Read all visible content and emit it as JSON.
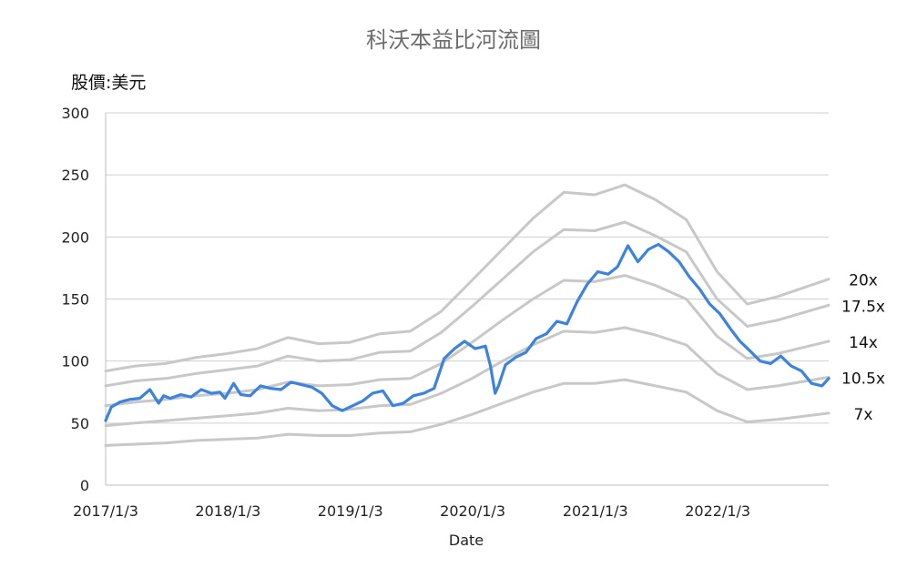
{
  "chart_data": {
    "type": "line",
    "title": "科沃本益比河流圖",
    "unit_label": "股價:美元",
    "xlabel": "Date",
    "ylabel": "",
    "ylim": [
      0,
      300
    ],
    "yticks": [
      0,
      50,
      100,
      150,
      200,
      250,
      300
    ],
    "xlim": [
      "2017-01-03",
      "2022-11-30"
    ],
    "xticks": [
      "2017-01-03",
      "2018-01-03",
      "2019-01-03",
      "2020-01-03",
      "2021-01-03",
      "2022-01-03"
    ],
    "xtick_labels": [
      "2017/1/3",
      "2018/1/3",
      "2019/1/3",
      "2020/1/3",
      "2021/1/3",
      "2022/1/3"
    ],
    "grid": true,
    "band_series": [
      {
        "name": "20x",
        "color": "#c8c8c8",
        "x": [
          "2017-01-03",
          "2017-04-01",
          "2017-07-01",
          "2017-10-01",
          "2018-01-01",
          "2018-04-01",
          "2018-07-01",
          "2018-10-01",
          "2019-01-01",
          "2019-04-01",
          "2019-07-01",
          "2019-10-01",
          "2020-01-01",
          "2020-04-01",
          "2020-07-01",
          "2020-10-01",
          "2021-01-01",
          "2021-04-01",
          "2021-07-01",
          "2021-10-01",
          "2022-01-01",
          "2022-04-01",
          "2022-07-01",
          "2022-11-30"
        ],
        "values": [
          92,
          96,
          98,
          103,
          106,
          110,
          119,
          114,
          115,
          122,
          124,
          140,
          165,
          190,
          215,
          236,
          234,
          242,
          230,
          214,
          172,
          146,
          152,
          166
        ]
      },
      {
        "name": "17.5x",
        "color": "#c8c8c8",
        "x": [
          "2017-01-03",
          "2017-04-01",
          "2017-07-01",
          "2017-10-01",
          "2018-01-01",
          "2018-04-01",
          "2018-07-01",
          "2018-10-01",
          "2019-01-01",
          "2019-04-01",
          "2019-07-01",
          "2019-10-01",
          "2020-01-01",
          "2020-04-01",
          "2020-07-01",
          "2020-10-01",
          "2021-01-01",
          "2021-04-01",
          "2021-07-01",
          "2021-10-01",
          "2022-01-01",
          "2022-04-01",
          "2022-07-01",
          "2022-11-30"
        ],
        "values": [
          80,
          84,
          86,
          90,
          93,
          96,
          104,
          100,
          101,
          107,
          108,
          123,
          144,
          166,
          188,
          206,
          205,
          212,
          201,
          188,
          150,
          128,
          133,
          145
        ]
      },
      {
        "name": "14x",
        "color": "#c8c8c8",
        "x": [
          "2017-01-03",
          "2017-04-01",
          "2017-07-01",
          "2017-10-01",
          "2018-01-01",
          "2018-04-01",
          "2018-07-01",
          "2018-10-01",
          "2019-01-01",
          "2019-04-01",
          "2019-07-01",
          "2019-10-01",
          "2020-01-01",
          "2020-04-01",
          "2020-07-01",
          "2020-10-01",
          "2021-01-01",
          "2021-04-01",
          "2021-07-01",
          "2021-10-01",
          "2022-01-01",
          "2022-04-01",
          "2022-07-01",
          "2022-11-30"
        ],
        "values": [
          64,
          67,
          69,
          72,
          74,
          77,
          83,
          80,
          81,
          85,
          86,
          98,
          115,
          133,
          150,
          165,
          164,
          169,
          161,
          150,
          120,
          102,
          106,
          116
        ]
      },
      {
        "name": "10.5x",
        "color": "#c8c8c8",
        "x": [
          "2017-01-03",
          "2017-04-01",
          "2017-07-01",
          "2017-10-01",
          "2018-01-01",
          "2018-04-01",
          "2018-07-01",
          "2018-10-01",
          "2019-01-01",
          "2019-04-01",
          "2019-07-01",
          "2019-10-01",
          "2020-01-01",
          "2020-04-01",
          "2020-07-01",
          "2020-10-01",
          "2021-01-01",
          "2021-04-01",
          "2021-07-01",
          "2021-10-01",
          "2022-01-01",
          "2022-04-01",
          "2022-07-01",
          "2022-11-30"
        ],
        "values": [
          48,
          50,
          52,
          54,
          56,
          58,
          62,
          60,
          61,
          64,
          65,
          74,
          86,
          100,
          113,
          124,
          123,
          127,
          121,
          113,
          90,
          77,
          80,
          87
        ]
      },
      {
        "name": "7x",
        "color": "#c8c8c8",
        "x": [
          "2017-01-03",
          "2017-04-01",
          "2017-07-01",
          "2017-10-01",
          "2018-01-01",
          "2018-04-01",
          "2018-07-01",
          "2018-10-01",
          "2019-01-01",
          "2019-04-01",
          "2019-07-01",
          "2019-10-01",
          "2020-01-01",
          "2020-04-01",
          "2020-07-01",
          "2020-10-01",
          "2021-01-01",
          "2021-04-01",
          "2021-07-01",
          "2021-10-01",
          "2022-01-01",
          "2022-04-01",
          "2022-07-01",
          "2022-11-30"
        ],
        "values": [
          32,
          33,
          34,
          36,
          37,
          38,
          41,
          40,
          40,
          42,
          43,
          49,
          57,
          66,
          75,
          82,
          82,
          85,
          80,
          75,
          60,
          51,
          53,
          58
        ]
      }
    ],
    "price_series": {
      "name": "",
      "color": "#3b83de",
      "x": [
        "2017-01-03",
        "2017-01-20",
        "2017-02-15",
        "2017-03-15",
        "2017-04-15",
        "2017-05-15",
        "2017-06-10",
        "2017-06-25",
        "2017-07-15",
        "2017-08-15",
        "2017-09-15",
        "2017-10-15",
        "2017-11-15",
        "2017-12-10",
        "2017-12-25",
        "2018-01-20",
        "2018-02-10",
        "2018-03-10",
        "2018-04-10",
        "2018-05-10",
        "2018-06-10",
        "2018-07-10",
        "2018-08-10",
        "2018-09-10",
        "2018-10-10",
        "2018-11-10",
        "2018-12-10",
        "2019-01-10",
        "2019-02-10",
        "2019-03-10",
        "2019-04-10",
        "2019-05-10",
        "2019-06-10",
        "2019-07-10",
        "2019-08-10",
        "2019-09-10",
        "2019-10-10",
        "2019-11-10",
        "2019-12-10",
        "2020-01-10",
        "2020-02-10",
        "2020-02-25",
        "2020-03-10",
        "2020-03-20",
        "2020-04-10",
        "2020-05-10",
        "2020-06-10",
        "2020-07-10",
        "2020-08-10",
        "2020-09-10",
        "2020-10-10",
        "2020-11-10",
        "2020-12-10",
        "2021-01-10",
        "2021-02-10",
        "2021-03-10",
        "2021-04-10",
        "2021-05-10",
        "2021-06-10",
        "2021-07-10",
        "2021-08-10",
        "2021-09-10",
        "2021-10-10",
        "2021-11-10",
        "2021-12-10",
        "2022-01-10",
        "2022-02-10",
        "2022-03-10",
        "2022-04-10",
        "2022-05-10",
        "2022-06-10",
        "2022-07-10",
        "2022-08-10",
        "2022-09-10",
        "2022-10-10",
        "2022-11-10",
        "2022-11-30"
      ],
      "values": [
        52,
        63,
        67,
        69,
        70,
        77,
        66,
        72,
        70,
        73,
        71,
        77,
        74,
        75,
        70,
        82,
        73,
        72,
        80,
        78,
        77,
        83,
        81,
        79,
        74,
        64,
        60,
        64,
        68,
        74,
        76,
        64,
        66,
        72,
        74,
        78,
        102,
        110,
        116,
        110,
        112,
        96,
        74,
        80,
        97,
        103,
        107,
        118,
        122,
        132,
        130,
        148,
        162,
        172,
        170,
        176,
        193,
        180,
        190,
        194,
        188,
        180,
        168,
        158,
        146,
        138,
        126,
        116,
        108,
        100,
        98,
        104,
        96,
        92,
        82,
        80,
        86
      ]
    },
    "band_labels": [
      "20x",
      "17.5x",
      "14x",
      "10.5x",
      "7x"
    ]
  }
}
